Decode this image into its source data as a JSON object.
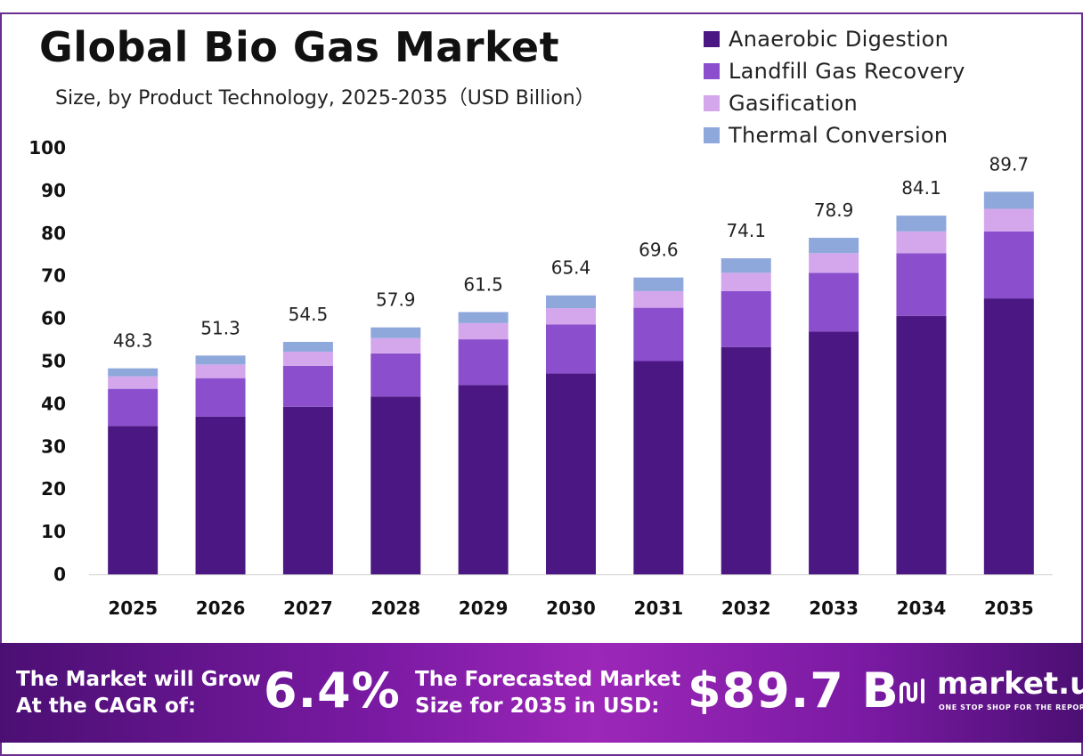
{
  "title": "Global Bio Gas Market",
  "subtitle": "Size, by Product Technology, 2025-2035（USD Billion）",
  "chart_data": {
    "type": "bar",
    "stacked": true,
    "categories": [
      "2025",
      "2026",
      "2027",
      "2028",
      "2029",
      "2030",
      "2031",
      "2032",
      "2033",
      "2034",
      "2035"
    ],
    "series": [
      {
        "name": "Anaerobic Digestion",
        "color": "#4b1782",
        "values": [
          34.8,
          37.0,
          39.3,
          41.7,
          44.4,
          47.1,
          50.0,
          53.3,
          56.9,
          60.6,
          64.7
        ]
      },
      {
        "name": "Landfill Gas Recovery",
        "color": "#8b4fce",
        "values": [
          8.7,
          9.0,
          9.6,
          10.1,
          10.7,
          11.5,
          12.5,
          13.1,
          13.8,
          14.7,
          15.7
        ]
      },
      {
        "name": "Gasification",
        "color": "#d4a7ec",
        "values": [
          2.9,
          3.2,
          3.3,
          3.6,
          3.8,
          3.8,
          3.9,
          4.3,
          4.6,
          5.1,
          5.3
        ]
      },
      {
        "name": "Thermal Conversion",
        "color": "#8fa8dc",
        "values": [
          1.9,
          2.1,
          2.3,
          2.5,
          2.6,
          3.0,
          3.2,
          3.4,
          3.6,
          3.7,
          4.0
        ]
      }
    ],
    "totals": [
      "48.3",
      "51.3",
      "54.5",
      "57.9",
      "61.5",
      "65.4",
      "69.6",
      "74.1",
      "78.9",
      "84.1",
      "89.7"
    ],
    "ylim": [
      0,
      100
    ],
    "yticks": [
      "0",
      "10",
      "20",
      "30",
      "40",
      "50",
      "60",
      "70",
      "80",
      "90",
      "100"
    ],
    "legend_position": "top-right",
    "grid": false
  },
  "banner": {
    "cagr_line1": "The Market will Grow",
    "cagr_line2": "At the CAGR of:",
    "cagr_value": "6.4%",
    "forecast_line1": "The Forecasted Market",
    "forecast_line2": "Size for 2035 in USD:",
    "forecast_value": "$89.7 B",
    "logo_name": "market.us",
    "logo_tagline": "ONE STOP SHOP FOR THE REPORTS"
  }
}
